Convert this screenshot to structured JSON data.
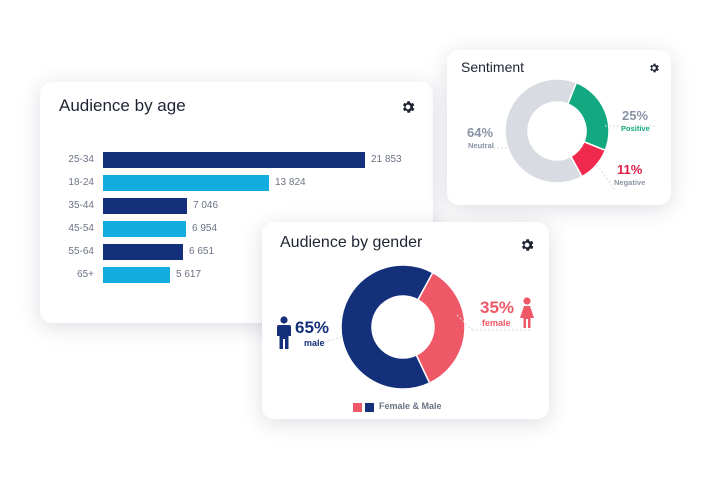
{
  "age_card": {
    "title": "Audience by age",
    "bars": [
      {
        "label": "25-34",
        "value": 21853,
        "value_text": "21 853",
        "color": "#14307a"
      },
      {
        "label": "18-24",
        "value": 13824,
        "value_text": "13 824",
        "color": "#12acdf"
      },
      {
        "label": "35-44",
        "value": 7046,
        "value_text": "7 046",
        "color": "#14307a"
      },
      {
        "label": "45-54",
        "value": 6954,
        "value_text": "6 954",
        "color": "#12acdf"
      },
      {
        "label": "55-64",
        "value": 6651,
        "value_text": "6 651",
        "color": "#14307a"
      },
      {
        "label": "65+",
        "value": 5617,
        "value_text": "5 617",
        "color": "#12acdf"
      }
    ]
  },
  "sentiment_card": {
    "title": "Sentiment",
    "neutral": {
      "percent": "64%",
      "label": "Neutral",
      "value": 64,
      "color": "#d9dbe3",
      "text_color": "#8a93a6"
    },
    "positive": {
      "percent": "25%",
      "label": "Positive",
      "value": 25,
      "color": "#12a980",
      "text_color": "#8a93a6",
      "label_color": "#12a980"
    },
    "negative": {
      "percent": "11%",
      "label": "Negative",
      "value": 11,
      "color": "#f02a4e",
      "text_color": "#e01f45",
      "label_color": "#8a93a6"
    }
  },
  "gender_card": {
    "title": "Audience by gender",
    "male": {
      "percent": "65%",
      "label": "male",
      "value": 65,
      "color": "#14307a"
    },
    "female": {
      "percent": "35%",
      "label": "female",
      "value": 35,
      "color": "#ef5866"
    },
    "legend": "Female & Male"
  },
  "icons": {
    "settings": "gear-icon",
    "male": "male-person-icon",
    "female": "female-person-icon"
  }
}
